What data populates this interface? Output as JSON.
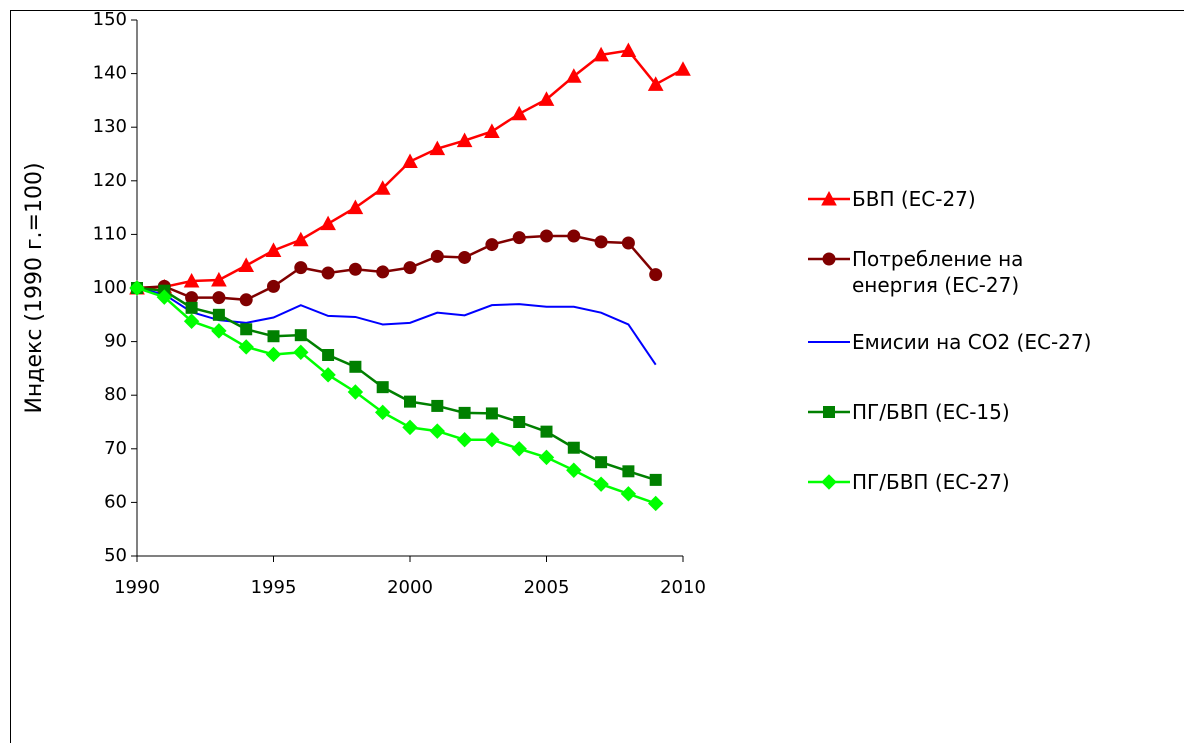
{
  "chart_data": {
    "type": "line",
    "ylabel": "Индекс (1990 г.=100)",
    "x": [
      1990,
      1991,
      1992,
      1993,
      1994,
      1995,
      1996,
      1997,
      1998,
      1999,
      2000,
      2001,
      2002,
      2003,
      2004,
      2005,
      2006,
      2007,
      2008,
      2009,
      2010
    ],
    "xlim": [
      1990,
      2010
    ],
    "xticks": [
      1990,
      1995,
      2000,
      2005,
      2010
    ],
    "ylim": [
      50,
      150
    ],
    "yticks": [
      50,
      60,
      70,
      80,
      90,
      100,
      110,
      120,
      130,
      140,
      150
    ],
    "grid": false,
    "legend": "right",
    "series": [
      {
        "name": "БВП (ЕС-27)",
        "color": "#ff0000",
        "marker": "triangle",
        "values": [
          100,
          100.2,
          101.3,
          101.5,
          104.2,
          107.0,
          109.0,
          112.0,
          115.0,
          118.6,
          123.6,
          126.0,
          127.5,
          129.2,
          132.5,
          135.2,
          139.5,
          143.5,
          144.3,
          138.0,
          140.8
        ]
      },
      {
        "name": "Потребление на енергия (ЕС-27)",
        "color": "#800000",
        "marker": "circle",
        "values": [
          100,
          100.3,
          98.2,
          98.2,
          97.8,
          100.3,
          103.8,
          102.8,
          103.5,
          103.0,
          103.8,
          105.9,
          105.7,
          108.1,
          109.4,
          109.7,
          109.7,
          108.6,
          108.4,
          102.5,
          null
        ]
      },
      {
        "name": "Емисии на CO2 (ЕС-27)",
        "color": "#0000ff",
        "marker": "none",
        "values": [
          100,
          98.8,
          95.5,
          94.0,
          93.5,
          94.5,
          96.8,
          94.8,
          94.6,
          93.2,
          93.5,
          95.4,
          94.9,
          96.8,
          97.0,
          96.5,
          96.5,
          95.4,
          93.2,
          85.7,
          null
        ]
      },
      {
        "name": "ПГ/БВП (ЕС-15)",
        "color": "#008000",
        "marker": "square",
        "values": [
          100,
          99.5,
          96.3,
          95.0,
          92.3,
          91.0,
          91.2,
          87.5,
          85.3,
          81.5,
          78.8,
          78.0,
          76.7,
          76.6,
          75.0,
          73.2,
          70.2,
          67.5,
          65.8,
          64.2,
          null
        ]
      },
      {
        "name": "ПГ/БВП (ЕС-27)",
        "color": "#00ff00",
        "marker": "diamond",
        "values": [
          100,
          98.3,
          93.8,
          92.0,
          89.0,
          87.6,
          88.0,
          83.8,
          80.6,
          76.8,
          74.0,
          73.3,
          71.7,
          71.7,
          70.0,
          68.4,
          66.0,
          63.4,
          61.6,
          59.8,
          null
        ]
      }
    ]
  }
}
